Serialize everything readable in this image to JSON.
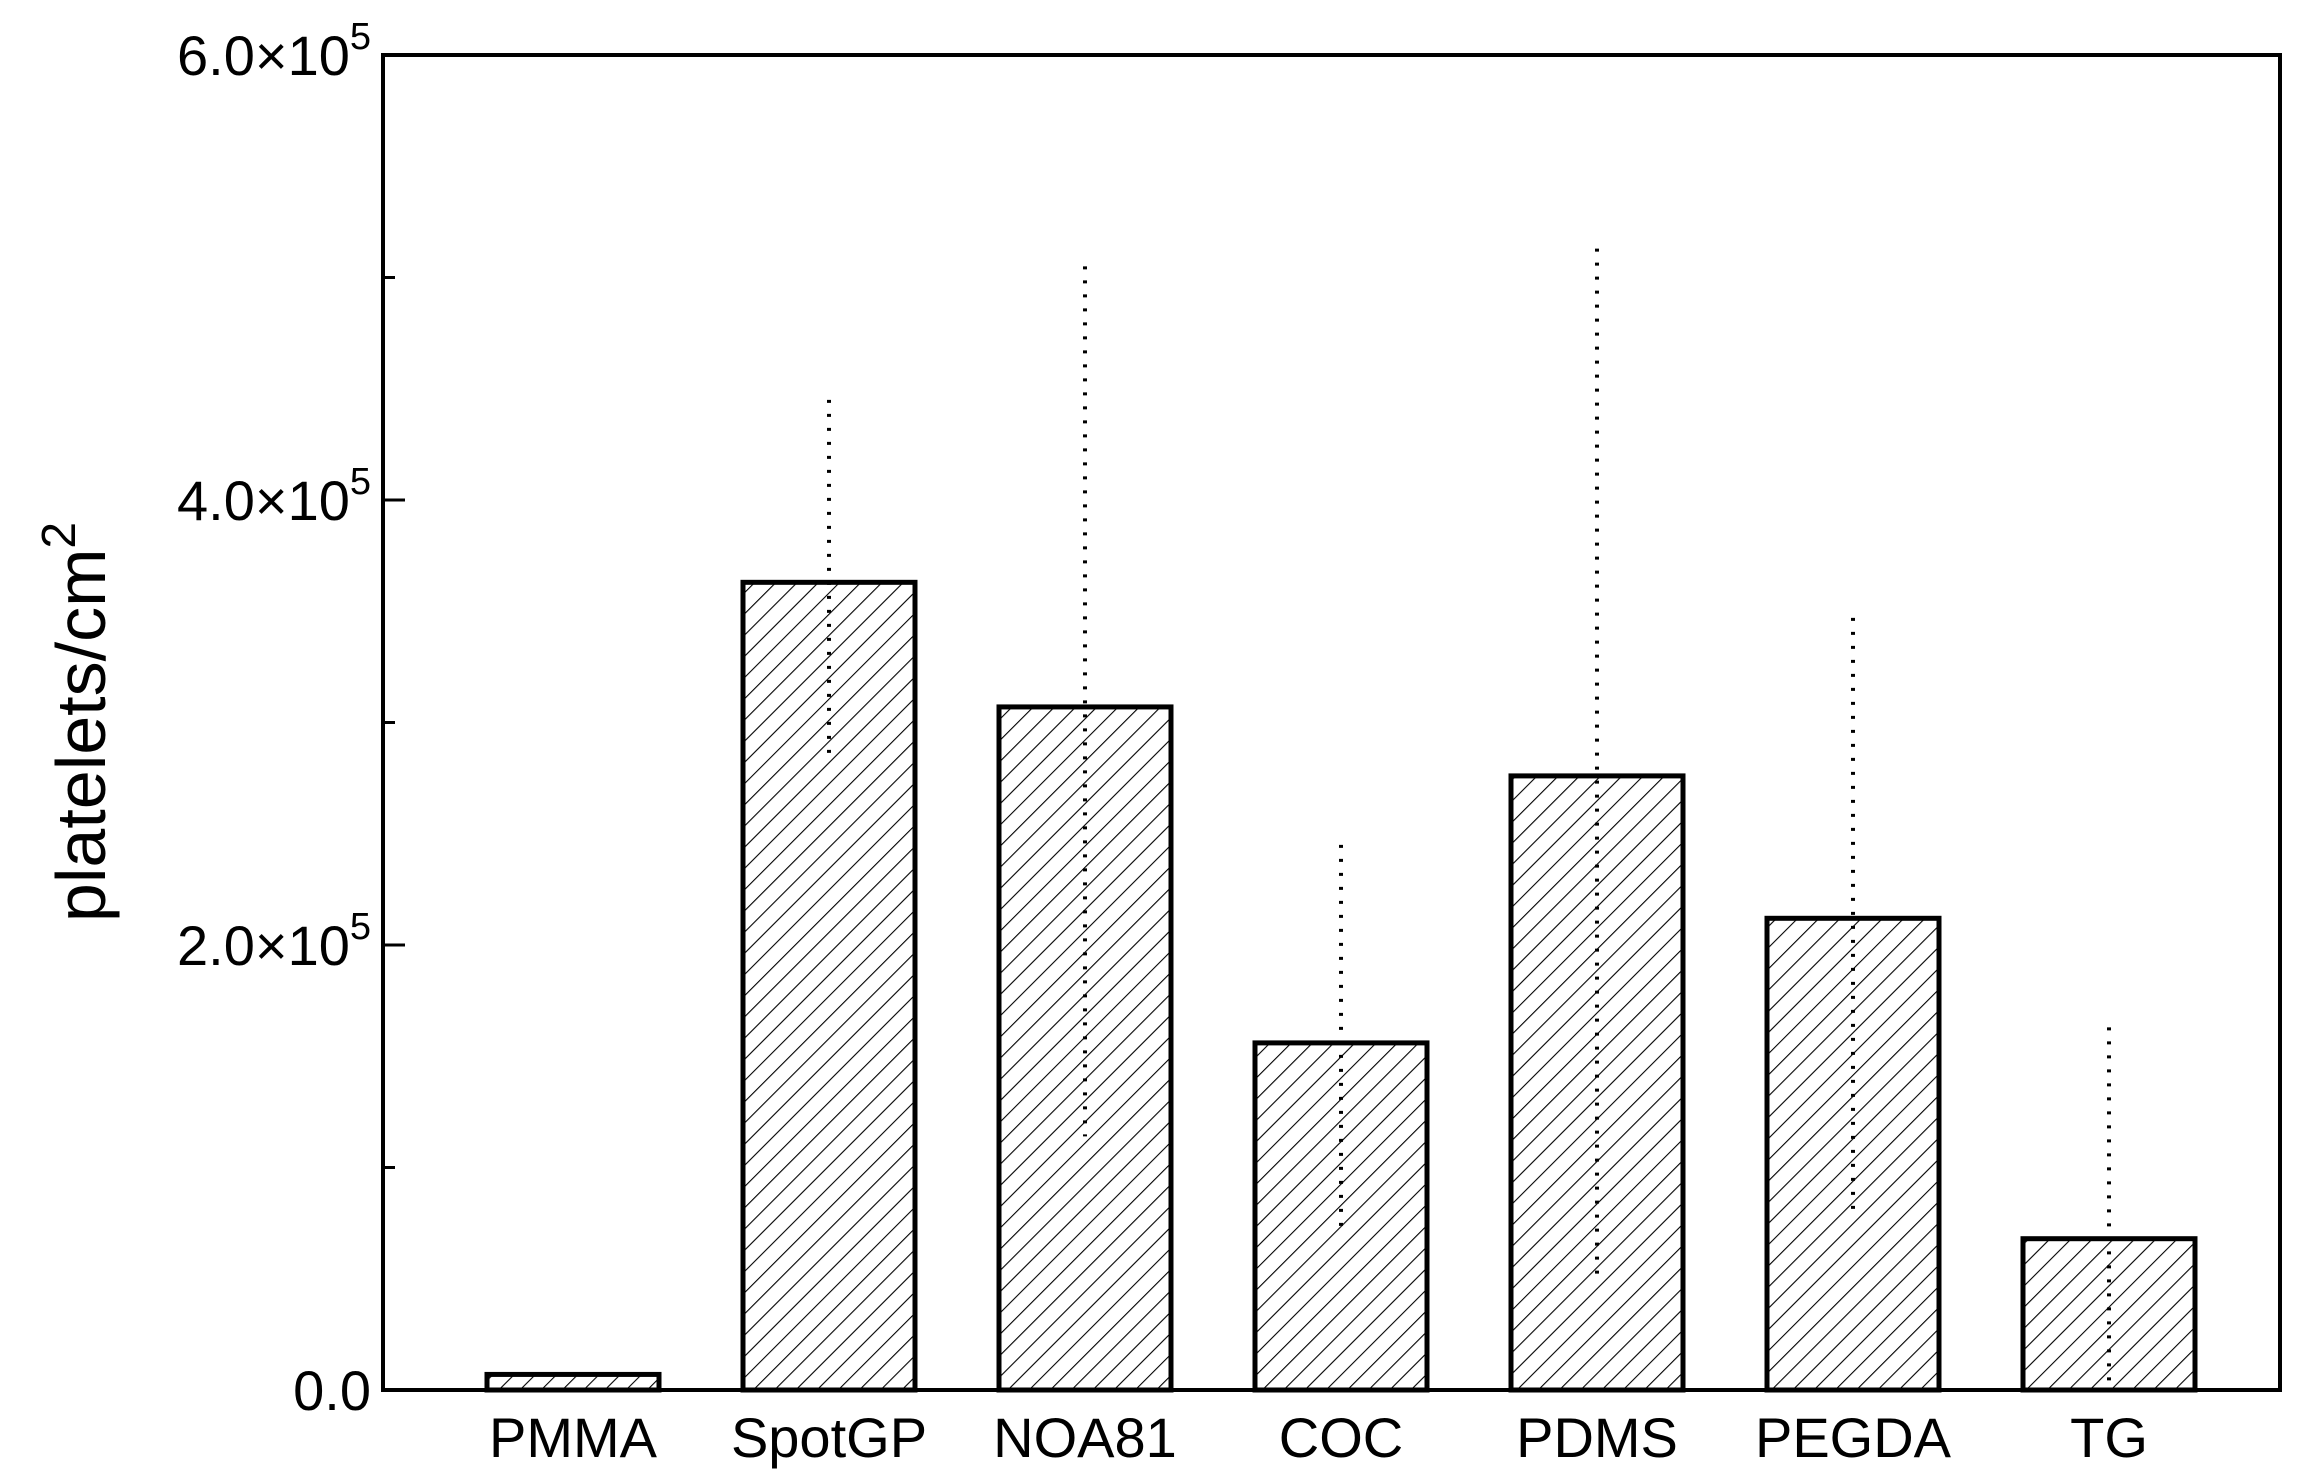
{
  "chart_data": {
    "type": "bar",
    "title": "",
    "xlabel": "",
    "ylabel": "platelets/cm",
    "ylabel_superscript": "2",
    "ylim": [
      0,
      600000
    ],
    "yticks": [
      {
        "value": 0,
        "mantissa": "0.0",
        "exponent": ""
      },
      {
        "value": 200000,
        "mantissa": "2.0×10",
        "exponent": "5"
      },
      {
        "value": 400000,
        "mantissa": "4.0×10",
        "exponent": "5"
      },
      {
        "value": 600000,
        "mantissa": "6.0×10",
        "exponent": "5"
      }
    ],
    "minor_yticks": [
      100000,
      300000,
      500000
    ],
    "categories": [
      "PMMA",
      "SpotGP",
      "NOA81",
      "COC",
      "PDMS",
      "PEGDA",
      "TG"
    ],
    "values": [
      7000,
      363000,
      307000,
      156000,
      276000,
      212000,
      68000
    ],
    "error_low": [
      7000,
      282000,
      114000,
      69000,
      48000,
      78000,
      0
    ],
    "error_high": [
      7000,
      445000,
      505000,
      245000,
      513000,
      347000,
      163000
    ],
    "bar_fill": "hatched",
    "grid": false,
    "legend": "none"
  }
}
